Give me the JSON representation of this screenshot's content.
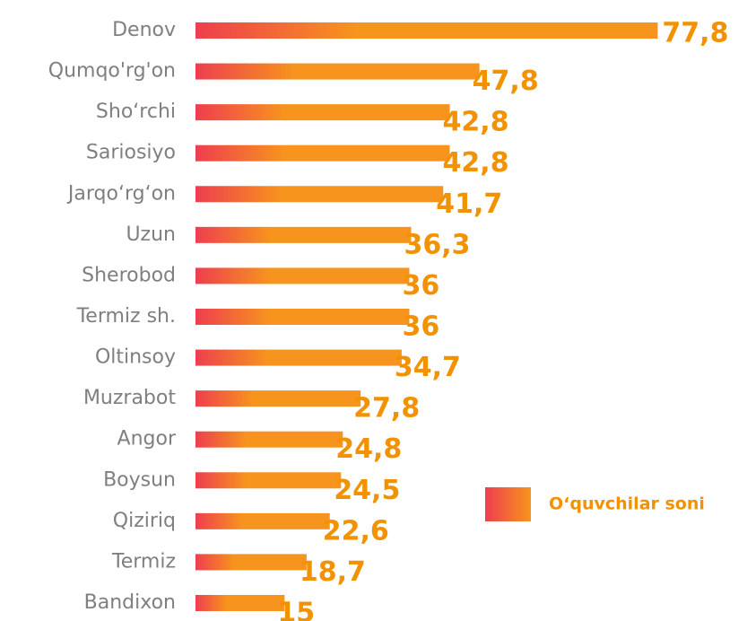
{
  "chart_data": {
    "type": "bar",
    "orientation": "horizontal",
    "categories": [
      "Denov",
      "Qumqo'rg'on",
      "Sho‘rchi",
      "Sariosiyo",
      "Jarqo‘rg‘on",
      "Uzun",
      "Sherobod",
      "Termiz sh.",
      "Oltinsoy",
      "Muzrabot",
      "Angor",
      "Boysun",
      "Qiziriq",
      "Termiz",
      "Bandixon"
    ],
    "series": [
      {
        "name": "O‘quvchilar soni",
        "color": [
          "#ee3e4f",
          "#f7941d"
        ],
        "values": [
          77.8,
          47.8,
          42.8,
          42.8,
          41.7,
          36.3,
          36,
          36,
          34.7,
          27.8,
          24.8,
          24.5,
          22.6,
          18.7,
          15
        ],
        "value_labels": [
          "77,8",
          "47,8",
          "42,8",
          "42,8",
          "41,7",
          "36,3",
          "36",
          "36",
          "34,7",
          "27,8",
          "24,8",
          "24,5",
          "22,6",
          "18,7",
          "15"
        ]
      }
    ],
    "xlim": [
      0,
      80
    ],
    "legend": "right"
  }
}
